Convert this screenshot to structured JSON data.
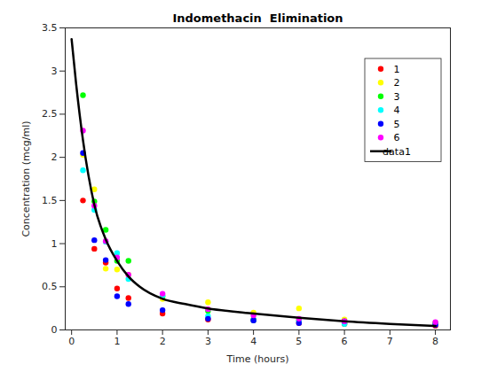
{
  "chart_data": {
    "type": "scatter",
    "title": "Indomethacin  Elimination",
    "x_label": "Time (hours)",
    "y_label": "Concentration (mcg/ml)",
    "x": [
      0.25,
      0.5,
      0.75,
      1,
      1.25,
      2,
      3,
      4,
      5,
      6,
      8
    ],
    "series": [
      {
        "name": "1",
        "color": "#ff0000",
        "type": "scatter",
        "marker": "circle",
        "values": [
          1.5,
          0.94,
          0.78,
          0.48,
          0.37,
          0.19,
          0.12,
          0.11,
          0.08,
          0.07,
          0.05
        ]
      },
      {
        "name": "2",
        "color": "#ffff00",
        "type": "scatter",
        "marker": "circle",
        "values": [
          2.03,
          1.63,
          0.71,
          0.7,
          0.64,
          0.36,
          0.32,
          0.2,
          0.25,
          0.12,
          0.08
        ]
      },
      {
        "name": "3",
        "color": "#00ff00",
        "type": "scatter",
        "marker": "circle",
        "values": [
          2.72,
          1.49,
          1.16,
          0.8,
          0.8,
          0.39,
          0.22,
          0.12,
          0.11,
          0.08,
          0.08
        ]
      },
      {
        "name": "4",
        "color": "#00ffff",
        "type": "scatter",
        "marker": "circle",
        "values": [
          1.85,
          1.39,
          1.02,
          0.89,
          0.59,
          0.4,
          0.16,
          0.11,
          0.1,
          0.07,
          0.07
        ]
      },
      {
        "name": "5",
        "color": "#0000ff",
        "type": "scatter",
        "marker": "circle",
        "values": [
          2.05,
          1.04,
          0.81,
          0.39,
          0.3,
          0.23,
          0.13,
          0.11,
          0.08,
          0.1,
          0.06
        ]
      },
      {
        "name": "6",
        "color": "#ff00ff",
        "type": "scatter",
        "marker": "circle",
        "values": [
          2.31,
          1.44,
          1.03,
          0.84,
          0.64,
          0.42,
          0.24,
          0.17,
          0.13,
          0.1,
          0.09
        ]
      },
      {
        "name": "data1",
        "color": "#000000",
        "type": "line",
        "line_style": "solid",
        "x": [
          0,
          0.1,
          0.25,
          0.5,
          0.75,
          1,
          1.25,
          1.5,
          2,
          2.5,
          3,
          4,
          5,
          6,
          7,
          8
        ],
        "values": [
          3.37,
          2.85,
          2.2,
          1.45,
          1.05,
          0.8,
          0.62,
          0.5,
          0.36,
          0.3,
          0.25,
          0.19,
          0.14,
          0.1,
          0.07,
          0.045
        ]
      }
    ],
    "xlim": [
      -0.14,
      8.33
    ],
    "ylim": [
      0,
      3.5
    ],
    "xticks": [
      0,
      1,
      2,
      3,
      4,
      5,
      6,
      7,
      8
    ],
    "yticks": [
      0,
      0.5,
      1,
      1.5,
      2,
      2.5,
      3,
      3.5
    ],
    "grid": false,
    "legend": "northeast"
  }
}
